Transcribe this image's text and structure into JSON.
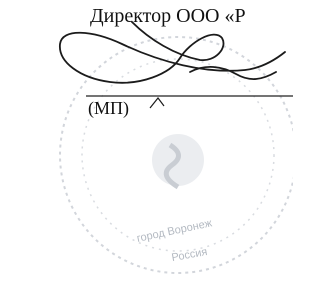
{
  "document": {
    "signatory": "Директор ООО «Р",
    "seal_mark": "(МП)",
    "stamp": {
      "city": "город Воронеж",
      "country": "Россия"
    }
  }
}
